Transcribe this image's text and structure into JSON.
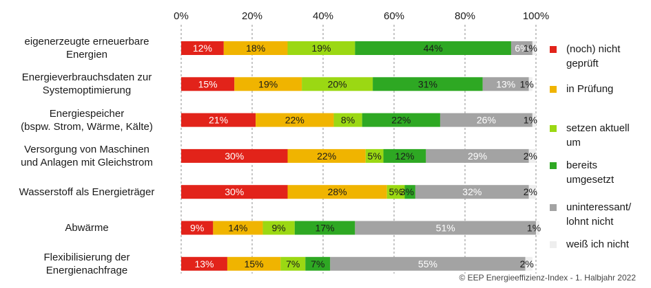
{
  "chart_data": {
    "type": "bar",
    "orientation": "horizontal",
    "stacked": true,
    "xlim": [
      0,
      100
    ],
    "x_ticks": [
      "0%",
      "20%",
      "40%",
      "60%",
      "80%",
      "100%"
    ],
    "grid": true,
    "legend_position": "right",
    "categories": [
      "eigenerzeugte erneuerbare Energien",
      "Energieverbrauchsdaten zur Systemoptimierung",
      "Energiespeicher (bspw. Strom, Wärme, Kälte)",
      "Versorgung von Maschinen und Anlagen mit Gleichstrom",
      "Wasserstoff als Energieträger",
      "Abwärme",
      "Flexibilisierung der Energienachfrage"
    ],
    "series": [
      {
        "name": "(noch) nicht geprüft",
        "color": "#e2231a",
        "values": [
          12,
          15,
          21,
          30,
          30,
          9,
          13
        ]
      },
      {
        "name": "in Prüfung",
        "color": "#f0b400",
        "values": [
          18,
          19,
          22,
          22,
          28,
          14,
          15
        ]
      },
      {
        "name": "setzen aktuell um",
        "color": "#9bd813",
        "values": [
          19,
          20,
          8,
          5,
          5,
          9,
          7
        ]
      },
      {
        "name": "bereits umgesetzt",
        "color": "#2ea823",
        "values": [
          44,
          31,
          22,
          12,
          3,
          17,
          7
        ]
      },
      {
        "name": "uninteressant/ lohnt nicht",
        "color": "#a3a3a3",
        "values": [
          6,
          13,
          26,
          29,
          32,
          51,
          55
        ]
      },
      {
        "name": "weiß ich nicht",
        "color": "#eeeeee",
        "values": [
          1,
          1,
          1,
          2,
          2,
          1,
          2
        ]
      }
    ]
  },
  "labels": {
    "categories": [
      [
        "eigenerzeugte erneuerbare",
        "Energien"
      ],
      [
        "Energieverbrauchsdaten zur",
        "Systemoptimierung"
      ],
      [
        "Energiespeicher",
        "(bspw. Strom, Wärme, Kälte)"
      ],
      [
        "Versorgung von Maschinen",
        "und Anlagen mit Gleichstrom"
      ],
      [
        "Wasserstoff als Energieträger"
      ],
      [
        "Abwärme"
      ],
      [
        "Flexibilisierung der",
        "Energienachfrage"
      ]
    ],
    "legend": [
      "(noch) nicht\ngeprüft",
      "in Prüfung",
      "setzen aktuell\num",
      "bereits\numgesetzt",
      "uninteressant/\nlohnt nicht",
      "weiß ich nicht"
    ]
  },
  "copyright": "© EEP Energieeffizienz-Index - 1. Halbjahr 2022"
}
